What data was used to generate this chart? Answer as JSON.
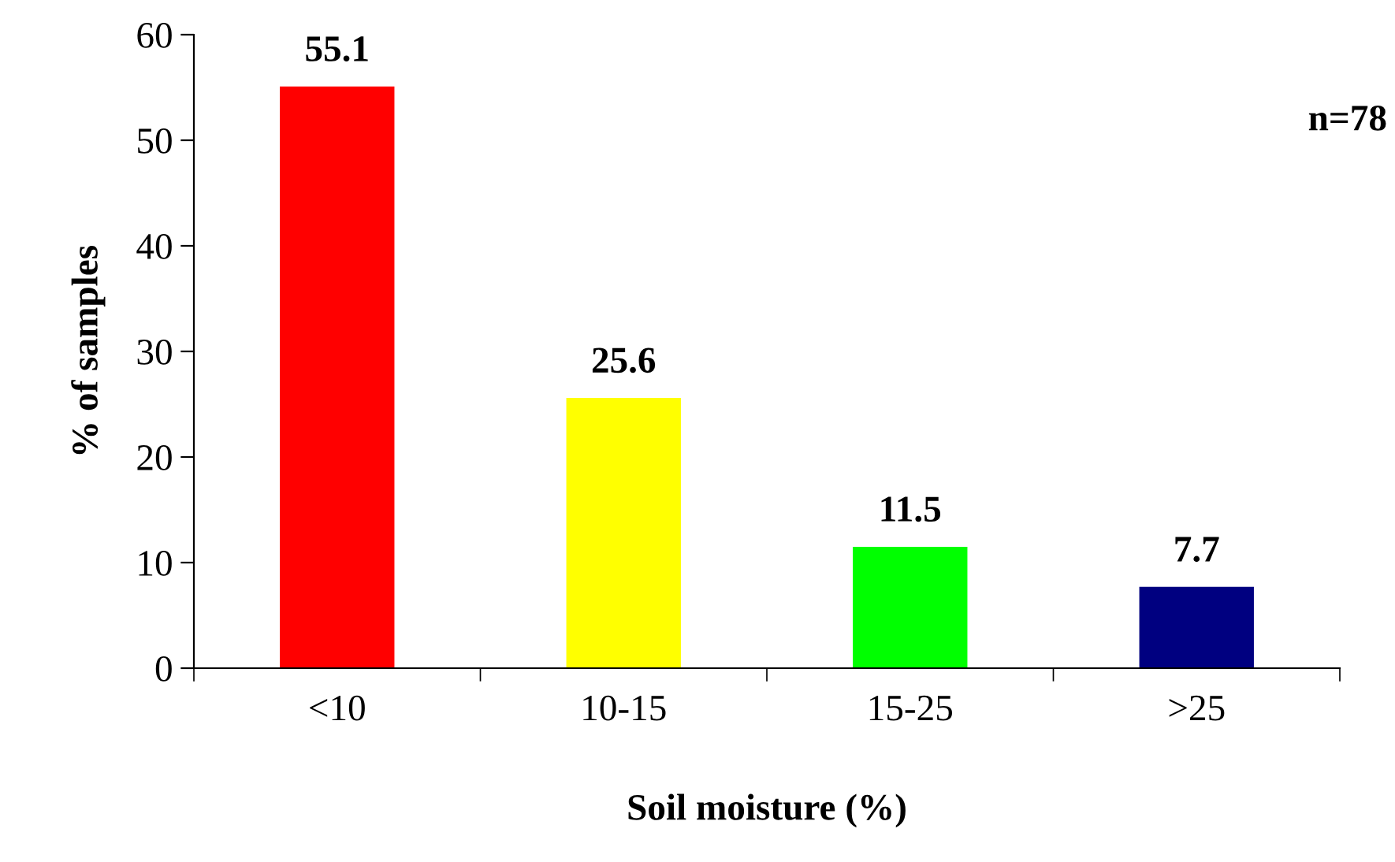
{
  "chart_data": {
    "type": "bar",
    "categories": [
      "<10",
      "10-15",
      "15-25",
      ">25"
    ],
    "values": [
      55.1,
      25.6,
      11.5,
      7.7
    ],
    "colors": [
      "#ff0000",
      "#ffff00",
      "#00ff00",
      "#000080"
    ],
    "xlabel": "Soil moisture (%)",
    "ylabel": "% of samples",
    "ylim": [
      0,
      60
    ],
    "yticks": [
      0,
      10,
      20,
      30,
      40,
      50,
      60
    ],
    "data_labels": true,
    "grid": false,
    "annotations": [
      "n=78"
    ]
  }
}
